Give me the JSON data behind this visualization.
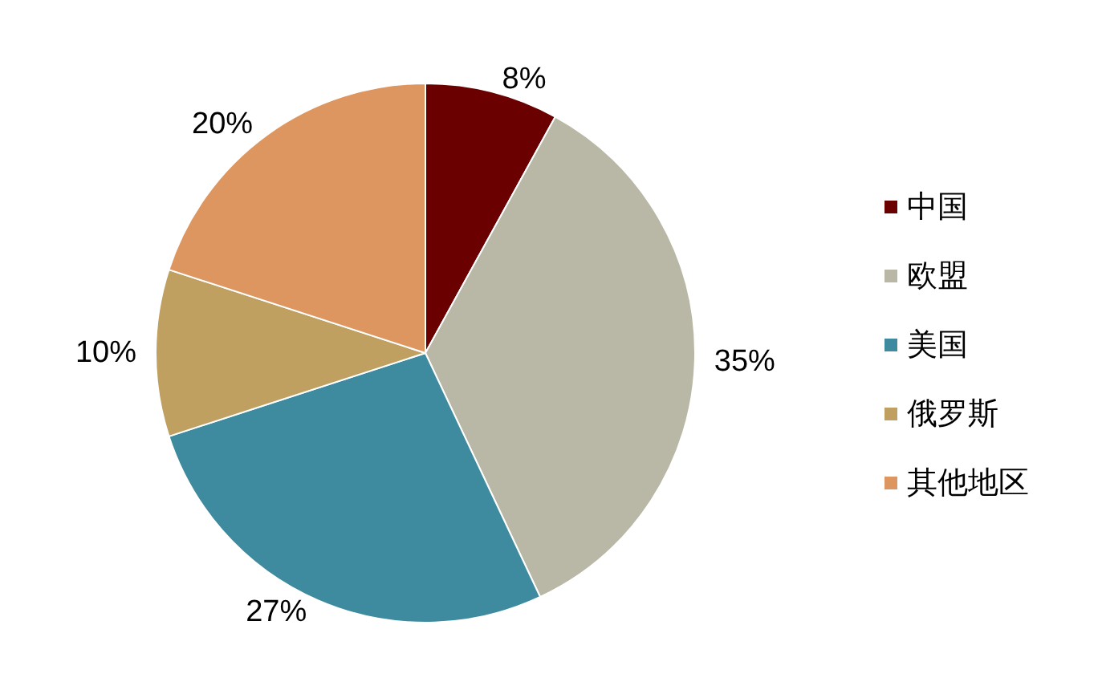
{
  "chart_data": {
    "type": "pie",
    "categories": [
      "中国",
      "欧盟",
      "美国",
      "俄罗斯",
      "其他地区"
    ],
    "values": [
      8,
      35,
      27,
      10,
      20
    ],
    "colors": [
      "#6b0000",
      "#b9b8a6",
      "#3e8a9e",
      "#bfa060",
      "#de9660"
    ],
    "value_labels": [
      "8%",
      "35%",
      "27%",
      "10%",
      "20%"
    ],
    "legend": "right"
  }
}
